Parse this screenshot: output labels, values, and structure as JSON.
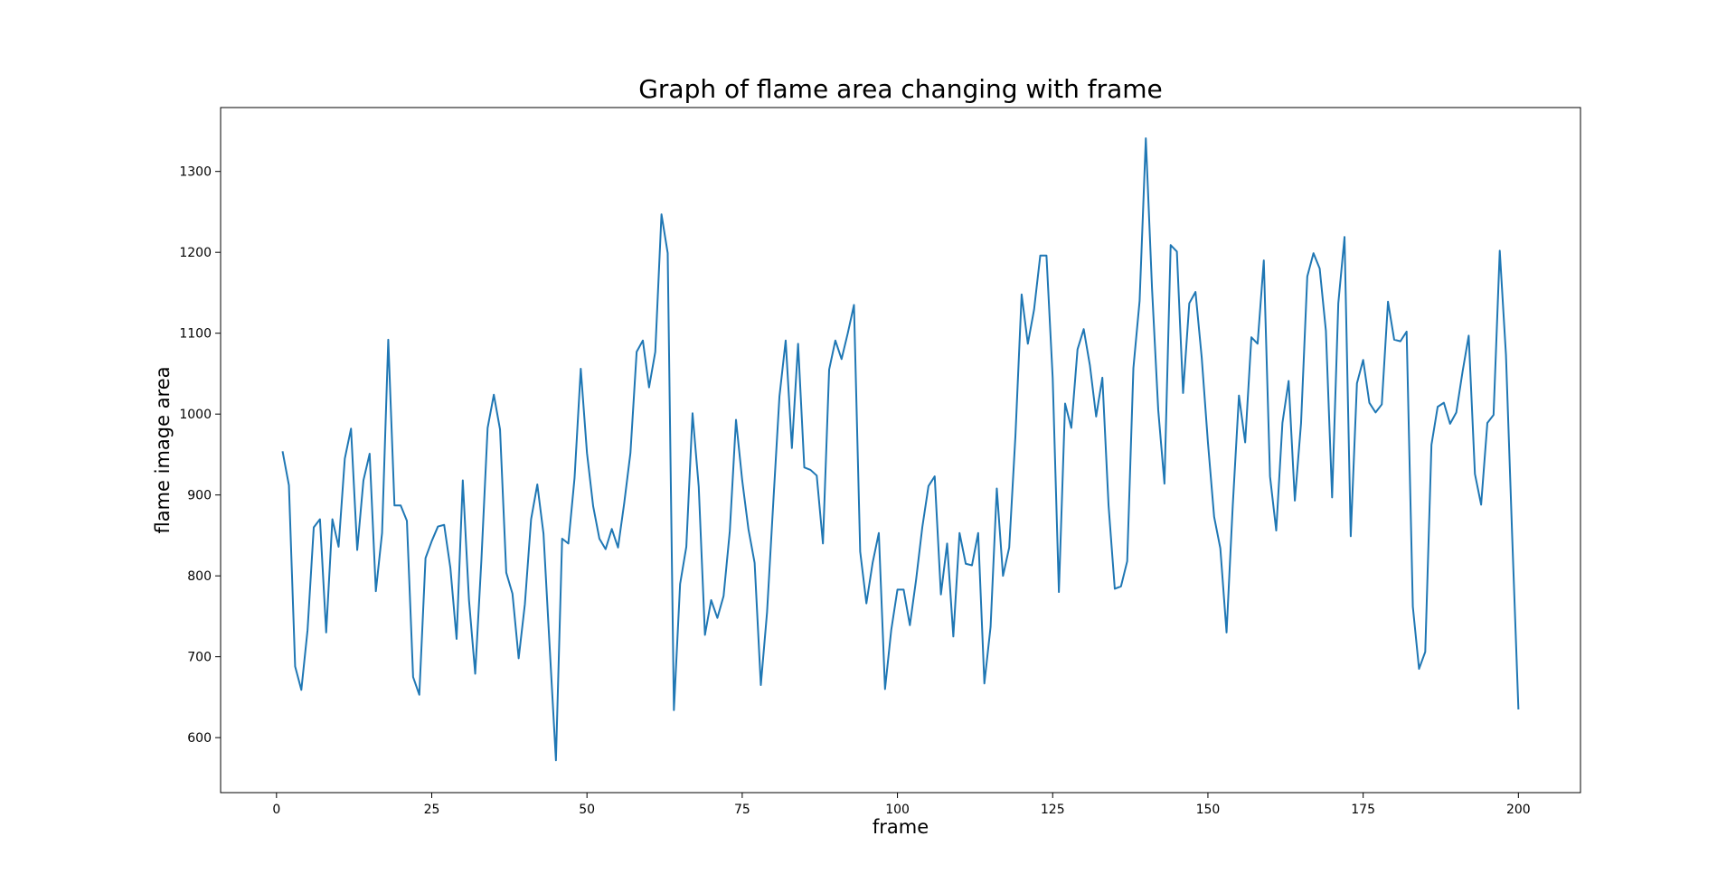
{
  "chart_data": {
    "type": "line",
    "title": "Graph of flame area changing with frame",
    "xlabel": "frame",
    "ylabel": "flame image area",
    "xlim": [
      -9,
      210
    ],
    "ylim": [
      532,
      1379
    ],
    "xticks": [
      0,
      25,
      50,
      75,
      100,
      125,
      150,
      175,
      200
    ],
    "yticks": [
      600,
      700,
      800,
      900,
      1000,
      1100,
      1200,
      1300
    ],
    "grid": false,
    "legend": "none",
    "series": [
      {
        "color": "#1f77b4",
        "x": [
          1,
          2,
          3,
          4,
          5,
          6,
          7,
          8,
          9,
          10,
          11,
          12,
          13,
          14,
          15,
          16,
          17,
          18,
          19,
          20,
          21,
          22,
          23,
          24,
          25,
          26,
          27,
          28,
          29,
          30,
          31,
          32,
          33,
          34,
          35,
          36,
          37,
          38,
          39,
          40,
          41,
          42,
          43,
          44,
          45,
          46,
          47,
          48,
          49,
          50,
          51,
          52,
          53,
          54,
          55,
          56,
          57,
          58,
          59,
          60,
          61,
          62,
          63,
          64,
          65,
          66,
          67,
          68,
          69,
          70,
          71,
          72,
          73,
          74,
          75,
          76,
          77,
          78,
          79,
          80,
          81,
          82,
          83,
          84,
          85,
          86,
          87,
          88,
          89,
          90,
          91,
          92,
          93,
          94,
          95,
          96,
          97,
          98,
          99,
          100,
          101,
          102,
          103,
          104,
          105,
          106,
          107,
          108,
          109,
          110,
          111,
          112,
          113,
          114,
          115,
          116,
          117,
          118,
          119,
          120,
          121,
          122,
          123,
          124,
          125,
          126,
          127,
          128,
          129,
          130,
          131,
          132,
          133,
          134,
          135,
          136,
          137,
          138,
          139,
          140,
          141,
          142,
          143,
          144,
          145,
          146,
          147,
          148,
          149,
          150,
          151,
          152,
          153,
          154,
          155,
          156,
          157,
          158,
          159,
          160,
          161,
          162,
          163,
          164,
          165,
          166,
          167,
          168,
          169,
          170,
          171,
          172,
          173,
          174,
          175,
          176,
          177,
          178,
          179,
          180,
          181,
          182,
          183,
          184,
          185,
          186,
          187,
          188,
          189,
          190,
          191,
          192,
          193,
          194,
          195,
          196,
          197,
          198,
          199,
          200
        ],
        "values": [
          953,
          912,
          688,
          659,
          733,
          860,
          870,
          730,
          870,
          836,
          945,
          982,
          832,
          918,
          951,
          781,
          853,
          1092,
          887,
          887,
          868,
          675,
          653,
          822,
          843,
          861,
          863,
          810,
          722,
          918,
          770,
          679,
          820,
          983,
          1024,
          981,
          804,
          778,
          698,
          765,
          870,
          913,
          852,
          711,
          572,
          846,
          840,
          921,
          1056,
          952,
          886,
          846,
          833,
          858,
          835,
          890,
          952,
          1077,
          1091,
          1033,
          1077,
          1247,
          1199,
          634,
          790,
          836,
          1001,
          910,
          727,
          770,
          748,
          775,
          855,
          993,
          918,
          858,
          816,
          665,
          755,
          890,
          1022,
          1091,
          958,
          1087,
          934,
          931,
          924,
          840,
          1055,
          1091,
          1068,
          1100,
          1135,
          830,
          766,
          816,
          853,
          660,
          733,
          783,
          783,
          739,
          795,
          860,
          911,
          923,
          777,
          840,
          725,
          853,
          815,
          813,
          853,
          667,
          737,
          908,
          800,
          835,
          973,
          1148,
          1087,
          1129,
          1196,
          1196,
          1045,
          780,
          1013,
          983,
          1080,
          1105,
          1060,
          997,
          1045,
          887,
          784,
          787,
          818,
          1057,
          1140,
          1341,
          1155,
          1005,
          914,
          1209,
          1201,
          1026,
          1137,
          1151,
          1070,
          965,
          873,
          834,
          730,
          887,
          1023,
          965,
          1095,
          1087,
          1190,
          923,
          856,
          989,
          1041,
          893,
          989,
          1170,
          1199,
          1180,
          1103,
          897,
          1137,
          1219,
          849,
          1038,
          1067,
          1014,
          1002,
          1012,
          1139,
          1092,
          1090,
          1102,
          762,
          685,
          706,
          962,
          1009,
          1014,
          988,
          1002,
          1052,
          1097,
          926,
          888,
          989,
          999,
          1202,
          1073,
          849,
          636
        ]
      }
    ]
  }
}
